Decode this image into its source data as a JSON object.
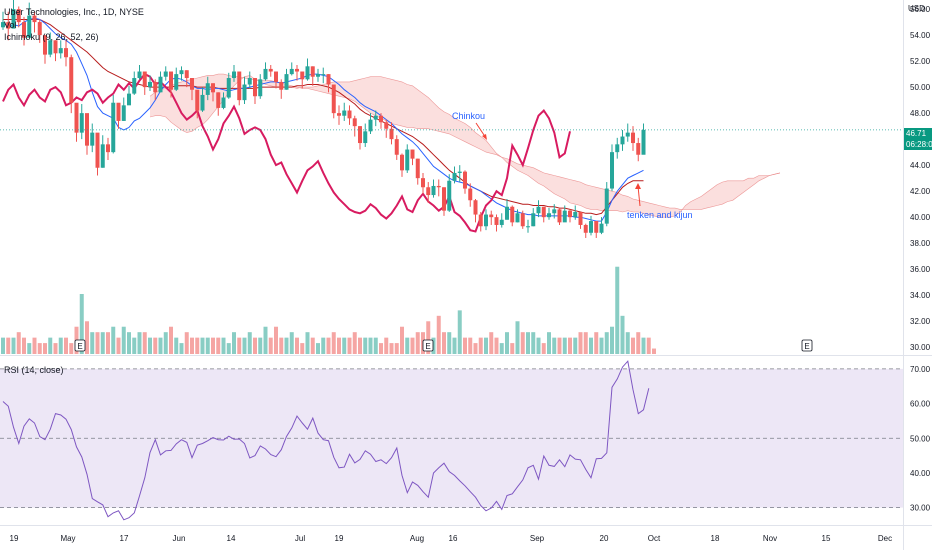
{
  "header": {
    "symbol": "Uber Technologies, Inc., 1D, NYSE",
    "vol_label": "Vol",
    "ichimoku_label": "Ichimoku (9, 26, 52, 26)",
    "currency": "USD"
  },
  "price_badge": {
    "value": "46.71",
    "countdown": "06:28:0"
  },
  "rsi_panel": {
    "label": "RSI (14, close)"
  },
  "annotations": {
    "chinkou": "Chinkou",
    "tenken_kijun": "tenken and kijun"
  },
  "earnings_marker": "E",
  "colors": {
    "up": "#26a69a",
    "down": "#ef5350",
    "tenkan": "#2962ff",
    "kijun": "#b71c1c",
    "chikou": "#d81b60",
    "cloud": "#f8c4c2",
    "rsi": "#7e57c2",
    "rsi_band": "#ede7f6"
  },
  "chart_data": {
    "type": "candlestick",
    "x_ticks": [
      "19",
      "May",
      "17",
      "Jun",
      "14",
      "Jul",
      "19",
      "Aug",
      "16",
      "Sep",
      "20",
      "Oct",
      "18",
      "Nov",
      "15",
      "Dec"
    ],
    "price_axis": {
      "ticks": [
        "56.00",
        "54.00",
        "52.00",
        "50.00",
        "48.00",
        "46.00",
        "44.00",
        "42.00",
        "40.00",
        "38.00",
        "36.00",
        "34.00",
        "32.00",
        "30.00"
      ],
      "range": [
        29.4,
        56.7
      ]
    },
    "ohlc_approx": {
      "close": [
        55.0,
        54.5,
        56.0,
        55.0,
        53.8,
        55.5,
        55.0,
        54.0,
        52.5,
        53.6,
        52.6,
        53.0,
        52.3,
        48.8,
        46.5,
        48.0,
        45.5,
        46.5,
        43.8,
        45.6,
        45.0,
        48.8,
        47.4,
        48.6,
        49.5,
        50.7,
        51.2,
        50.0,
        50.4,
        49.6,
        50.8,
        51.2,
        49.8,
        51.0,
        51.3,
        50.7,
        49.8,
        48.2,
        49.4,
        50.3,
        49.6,
        48.4,
        49.2,
        50.7,
        51.2,
        49.0,
        50.2,
        50.7,
        49.3,
        50.6,
        51.4,
        51.2,
        50.4,
        49.8,
        51.0,
        51.4,
        51.2,
        50.6,
        51.6,
        50.8,
        51.0,
        51.0,
        50.2,
        48.0,
        47.8,
        48.2,
        47.6,
        47.0,
        45.7,
        46.6,
        47.5,
        47.8,
        47.3,
        46.8,
        46.0,
        44.8,
        43.6,
        45.2,
        44.5,
        43.0,
        42.3,
        41.7,
        42.4,
        42.3,
        40.5,
        42.8,
        43.4,
        43.5,
        42.2,
        41.3,
        40.2,
        39.3,
        40.2,
        40.0,
        39.4,
        39.8,
        40.8,
        39.6,
        40.3,
        39.3,
        39.3,
        40.3,
        40.8,
        40.0,
        40.3,
        40.6,
        39.6,
        40.5,
        40.0,
        40.4,
        39.4,
        38.8,
        39.7,
        38.8,
        39.5,
        42.2,
        45.0,
        45.6,
        46.2,
        46.5,
        45.7,
        44.8,
        46.71
      ],
      "high": [
        55.8,
        55.8,
        56.9,
        56.2,
        55.4,
        56.5,
        55.8,
        55.2,
        53.6,
        54.2,
        53.6,
        53.6,
        53.6,
        52.5,
        47.8,
        48.7,
        47.0,
        47.2,
        44.9,
        46.3,
        46.1,
        49.4,
        48.3,
        49.2,
        50.1,
        51.2,
        51.7,
        50.9,
        50.9,
        50.6,
        51.2,
        51.6,
        50.8,
        51.5,
        51.6,
        51.3,
        50.7,
        49.2,
        50.0,
        50.8,
        50.3,
        49.6,
        49.6,
        51.1,
        51.7,
        51.2,
        50.8,
        51.2,
        50.7,
        51.0,
        51.9,
        51.7,
        51.2,
        50.6,
        51.4,
        51.9,
        51.7,
        51.2,
        52.2,
        51.6,
        51.4,
        51.5,
        51.0,
        50.2,
        48.6,
        48.8,
        48.6,
        47.8,
        47.0,
        47.2,
        48.0,
        48.2,
        48.0,
        47.5,
        47.3,
        46.3,
        44.9,
        45.6,
        45.2,
        44.5,
        43.4,
        42.7,
        42.9,
        42.9,
        42.3,
        43.3,
        43.9,
        44.0,
        43.6,
        42.6,
        41.4,
        40.4,
        40.6,
        40.5,
        40.2,
        40.3,
        41.4,
        40.9,
        40.6,
        40.5,
        39.8,
        40.7,
        41.3,
        40.8,
        40.7,
        41.0,
        40.7,
        40.9,
        40.6,
        40.9,
        40.4,
        39.5,
        40.1,
        39.7,
        40.0,
        42.7,
        45.6,
        46.1,
        46.7,
        47.2,
        47.0,
        46.1,
        47.2
      ],
      "low": [
        54.4,
        53.6,
        54.8,
        54.6,
        53.2,
        54.6,
        54.2,
        53.4,
        51.8,
        52.3,
        52.0,
        52.2,
        51.6,
        48.0,
        45.8,
        46.0,
        44.8,
        45.0,
        43.2,
        43.8,
        44.4,
        44.9,
        46.8,
        47.4,
        48.7,
        49.4,
        50.6,
        49.4,
        49.7,
        49.0,
        49.6,
        50.5,
        49.2,
        49.7,
        50.5,
        50.0,
        49.0,
        47.6,
        48.1,
        49.0,
        48.9,
        47.8,
        48.3,
        49.1,
        50.4,
        48.6,
        48.7,
        49.9,
        48.7,
        49.1,
        50.5,
        50.8,
        49.9,
        49.1,
        49.8,
        50.9,
        50.5,
        49.9,
        50.5,
        50.1,
        50.4,
        50.3,
        49.6,
        47.6,
        47.1,
        47.4,
        47.1,
        46.2,
        45.2,
        45.4,
        46.4,
        47.0,
        46.8,
        46.1,
        45.6,
        44.4,
        43.1,
        43.4,
        44.0,
        42.5,
        41.8,
        41.1,
        41.5,
        41.6,
        40.1,
        40.4,
        42.6,
        42.7,
        41.8,
        40.8,
        39.6,
        38.9,
        39.0,
        39.4,
        38.9,
        39.2,
        39.8,
        39.3,
        39.6,
        39.1,
        38.8,
        39.3,
        40.0,
        39.6,
        39.8,
        39.9,
        39.4,
        39.7,
        39.6,
        39.8,
        39.1,
        38.4,
        38.6,
        38.4,
        38.7,
        39.3,
        42.0,
        44.5,
        45.1,
        45.8,
        45.1,
        44.3,
        45.2
      ]
    },
    "volume_approx": [
      3,
      3,
      3,
      4,
      3,
      2,
      3,
      2,
      2,
      3,
      2,
      3,
      3,
      2,
      5,
      11,
      6,
      4,
      4,
      4,
      4,
      5,
      3,
      5,
      4,
      3,
      4,
      4,
      3,
      3,
      3,
      4,
      5,
      3,
      2,
      4,
      3,
      3,
      3,
      3,
      3,
      3,
      3,
      2,
      4,
      3,
      3,
      4,
      3,
      3,
      5,
      3,
      5,
      3,
      3,
      4,
      3,
      2,
      4,
      3,
      2,
      3,
      3,
      4,
      3,
      3,
      3,
      4,
      3,
      3,
      3,
      3,
      2,
      3,
      2,
      2,
      5,
      3,
      3,
      4,
      4,
      6,
      3,
      7,
      4,
      4,
      3,
      8,
      3,
      3,
      2,
      3,
      3,
      4,
      3,
      2,
      4,
      2,
      6,
      4,
      4,
      4,
      3,
      2,
      4,
      3,
      3,
      3,
      3,
      3,
      4,
      4,
      3,
      4,
      3,
      4,
      5,
      16,
      7,
      4,
      3,
      4,
      3,
      3,
      1
    ],
    "ichimoku": {
      "tenkan": [
        55.0,
        54.6,
        54.8,
        54.7,
        55.0,
        55.2,
        55.3,
        55.2,
        54.9,
        54.5,
        54.1,
        53.8,
        53.6,
        53.3,
        52.7,
        51.8,
        50.9,
        49.6,
        48.5,
        48.0,
        47.8,
        47.6,
        46.9,
        46.7,
        46.9,
        47.4,
        47.6,
        48.0,
        48.4,
        49.0,
        49.7,
        50.2,
        50.6,
        50.7,
        50.6,
        50.4,
        50.1,
        49.9,
        49.9,
        49.8,
        49.9,
        49.9,
        49.8,
        49.7,
        49.8,
        49.9,
        49.9,
        50.0,
        50.1,
        50.2,
        50.3,
        50.4,
        50.4,
        50.3,
        50.4,
        50.5,
        50.6,
        50.7,
        50.9,
        51.0,
        51.0,
        50.9,
        50.8,
        50.5,
        50.2,
        49.8,
        49.5,
        49.2,
        48.8,
        48.5,
        48.3,
        48.1,
        47.8,
        47.5,
        47.2,
        46.8,
        46.4,
        46.1,
        45.8,
        45.4,
        44.9,
        44.4,
        43.9,
        43.6,
        43.3,
        43.0,
        42.8,
        42.7,
        42.6,
        42.4,
        42.2,
        42.0,
        41.7,
        41.4,
        41.1,
        40.9,
        40.7,
        40.5,
        40.4,
        40.3,
        40.2,
        40.2,
        40.1,
        40.1,
        40.1,
        40.1,
        40.1,
        40.1,
        40.1,
        40.0,
        40.0,
        39.9,
        39.8,
        39.7,
        39.7,
        40.4,
        41.3,
        42.0,
        42.5,
        43.0,
        43.2,
        43.4,
        43.6
      ],
      "kijun": [
        55.2,
        55.2,
        55.2,
        55.2,
        55.2,
        55.2,
        55.2,
        55.2,
        55.0,
        54.8,
        54.5,
        54.2,
        53.9,
        53.6,
        53.3,
        53.0,
        52.7,
        52.3,
        51.9,
        51.5,
        51.2,
        51.0,
        50.8,
        50.6,
        50.4,
        50.3,
        50.2,
        50.1,
        50.0,
        50.0,
        50.0,
        50.0,
        50.0,
        50.1,
        50.1,
        50.1,
        50.1,
        50.0,
        50.0,
        50.0,
        50.0,
        49.9,
        49.9,
        49.9,
        49.9,
        49.9,
        49.9,
        49.9,
        49.9,
        50.0,
        50.0,
        50.0,
        50.0,
        50.0,
        50.0,
        50.0,
        50.1,
        50.1,
        50.2,
        50.2,
        50.2,
        50.1,
        50.0,
        49.8,
        49.6,
        49.3,
        49.0,
        48.7,
        48.3,
        48.0,
        47.8,
        47.6,
        47.4,
        47.2,
        47.0,
        46.8,
        46.6,
        46.4,
        46.2,
        45.9,
        45.6,
        45.2,
        44.8,
        44.4,
        44.0,
        43.6,
        43.3,
        43.0,
        42.7,
        42.4,
        42.2,
        42.0,
        41.8,
        41.6,
        41.5,
        41.4,
        41.3,
        41.2,
        41.1,
        41.0,
        41.0,
        40.9,
        40.9,
        40.9,
        40.8,
        40.8,
        40.7,
        40.7,
        40.6,
        40.5,
        40.4,
        40.3,
        40.3,
        40.2,
        40.3,
        40.8,
        41.3,
        41.8,
        42.3,
        42.6,
        42.8,
        42.8,
        42.8
      ],
      "chikou": [
        48.9,
        49.8,
        50.2,
        49.2,
        48.6,
        49.4,
        49.8,
        49.2,
        48.9,
        49.8,
        50.0,
        49.6,
        48.6,
        48.8,
        49.2,
        49.0,
        49.6,
        49.8,
        49.5,
        48.8,
        49.2,
        49.5,
        50.2,
        49.8,
        50.3,
        49.9,
        50.5,
        51.0,
        50.8,
        50.2,
        50.4,
        50.0,
        49.6,
        48.8,
        48.0,
        47.5,
        47.8,
        48.2,
        47.0,
        46.2,
        45.2,
        46.0,
        47.2,
        47.8,
        48.5,
        47.6,
        46.4,
        46.7,
        46.9,
        46.7,
        46.0,
        44.8,
        44.0,
        44.2,
        43.3,
        42.6,
        41.9,
        42.8,
        43.6,
        43.9,
        44.3,
        43.4,
        42.6,
        41.9,
        41.4,
        41.0,
        40.6,
        40.4,
        40.3,
        40.5,
        41.0,
        40.7,
        40.2,
        39.9,
        40.3,
        40.9,
        41.6,
        40.6,
        40.4,
        41.3,
        41.8,
        41.2,
        40.9,
        40.5,
        40.8,
        41.6,
        40.4,
        40.1,
        39.6,
        39.0,
        38.9,
        40.0,
        40.9,
        41.3,
        42.0,
        41.7,
        43.0,
        45.5,
        44.8,
        44.0,
        45.3,
        46.7,
        47.8,
        48.2,
        47.6,
        46.5,
        44.6,
        44.9,
        46.6
      ],
      "span_a_approx": [
        47.7,
        47.8,
        47.8,
        47.7,
        47.3,
        47.0,
        46.7,
        46.5,
        46.6,
        46.9,
        47.1,
        47.5,
        48.0,
        48.5,
        49.0,
        49.6,
        50.1,
        50.5,
        50.8,
        50.9,
        50.6,
        50.4,
        50.2,
        50.1,
        50.0,
        50.0,
        50.0,
        50.0,
        49.9,
        50.0,
        50.0,
        50.0,
        50.1,
        50.2,
        50.3,
        50.4,
        50.4,
        50.4,
        50.4,
        50.5,
        50.6,
        50.7,
        50.8,
        50.8,
        50.8,
        50.7,
        50.6,
        50.5,
        50.4,
        50.2,
        50.1,
        49.8,
        49.5,
        49.2,
        48.8,
        48.4,
        48.1,
        47.9,
        47.6,
        47.4,
        47.2,
        46.9,
        46.5,
        46.2,
        45.9,
        45.4,
        44.9,
        44.6,
        44.2,
        43.9,
        43.6,
        43.4,
        43.2,
        42.9,
        42.6,
        42.4,
        42.1,
        41.8,
        41.6,
        41.4,
        41.1,
        41.0,
        40.9,
        40.7,
        40.6,
        40.6,
        40.5,
        40.5,
        40.5,
        40.5,
        40.4,
        40.5,
        40.4,
        40.4,
        40.3,
        40.2,
        40.1,
        40.0,
        40.0,
        40.0,
        40.1,
        40.4,
        40.9,
        41.2,
        41.4,
        41.6,
        41.9,
        42.2,
        42.5,
        42.7,
        42.8,
        42.8,
        42.8,
        42.8,
        43.0,
        43.0,
        43.2,
        43.2,
        43.2,
        43.3,
        43.4
      ],
      "span_b_approx": [
        49.3,
        49.6,
        49.8,
        49.9,
        50.1,
        50.3,
        50.4,
        50.5,
        50.6,
        50.7,
        50.8,
        50.9,
        50.9,
        51.0,
        51.0,
        50.9,
        50.8,
        50.8,
        50.7,
        50.6,
        50.6,
        50.5,
        50.5,
        50.5,
        50.4,
        50.3,
        50.2,
        50.1,
        50.0,
        49.9,
        49.9,
        49.8,
        49.7,
        49.6,
        49.5,
        49.4,
        49.3,
        49.2,
        49.1,
        48.9,
        48.6,
        48.3,
        48.0,
        47.8,
        47.6,
        47.4,
        47.2,
        47.1,
        47.0,
        46.9,
        46.9,
        46.8,
        46.8,
        46.8,
        46.7,
        46.6,
        46.5,
        46.4,
        46.2,
        46.0,
        45.8,
        45.6,
        45.4,
        45.2,
        45.0,
        44.9,
        44.8,
        44.6,
        44.5,
        44.3,
        44.1,
        44.0,
        43.9,
        43.8,
        43.6,
        43.4,
        43.3,
        43.2,
        43.1,
        43.0,
        42.9,
        42.8,
        42.7,
        42.5,
        42.4,
        42.3,
        42.2,
        42.1,
        42.0,
        41.9,
        41.7,
        41.6,
        41.4,
        41.3,
        41.2,
        41.1,
        41.0,
        40.9,
        40.8,
        40.7,
        40.7,
        40.6,
        40.6,
        40.6,
        40.6,
        40.6,
        40.7,
        40.8,
        40.9,
        41.0,
        41.2,
        41.3,
        41.6,
        41.9,
        42.2,
        42.5,
        42.8,
        43.0,
        43.2,
        43.3,
        43.4
      ]
    },
    "rsi": {
      "axis_ticks": [
        "70.00",
        "60.00",
        "50.00",
        "40.00",
        "30.00"
      ],
      "range": [
        25,
        74
      ],
      "upper_band": 70,
      "lower_band": 30,
      "values": [
        60.6,
        59.2,
        53.2,
        48.5,
        53.5,
        55.6,
        54.4,
        50.5,
        49.6,
        52.6,
        57.1,
        56.7,
        55.5,
        52.5,
        47.5,
        44.6,
        39.6,
        32.6,
        31.7,
        30.8,
        27.4,
        28.5,
        29.1,
        26.5,
        27.1,
        28.5,
        33.4,
        38.6,
        45.9,
        49.6,
        45.2,
        46.4,
        46.5,
        48.4,
        49.6,
        48.8,
        44.4,
        48.0,
        48.5,
        49.3,
        50.2,
        49.6,
        49.5,
        50.6,
        49.7,
        49.8,
        48.5,
        44.3,
        45.0,
        47.8,
        46.9,
        45.3,
        44.7,
        46.7,
        50.5,
        53.0,
        56.4,
        54.4,
        52.6,
        55.8,
        51.5,
        49.6,
        49.3,
        44.5,
        41.5,
        41.7,
        45.4,
        42.9,
        43.9,
        46.4,
        45.4,
        43.3,
        43.8,
        42.7,
        44.4,
        47.2,
        39.3,
        34.3,
        37.4,
        36.4,
        34.6,
        33.0,
        40.0,
        41.5,
        42.8,
        40.4,
        39.3,
        37.7,
        36.3,
        34.6,
        33.0,
        30.6,
        29.1,
        29.9,
        31.8,
        29.5,
        33.5,
        34.0,
        36.0,
        38.0,
        41.5,
        42.2,
        38.2,
        44.9,
        42.2,
        41.9,
        43.8,
        41.8,
        45.2,
        44.0,
        43.8,
        41.0,
        38.6,
        44.1,
        44.2,
        45.8,
        64.7,
        67.1,
        70.5,
        72.2,
        64.0,
        57.1,
        58.2,
        64.4
      ]
    }
  }
}
